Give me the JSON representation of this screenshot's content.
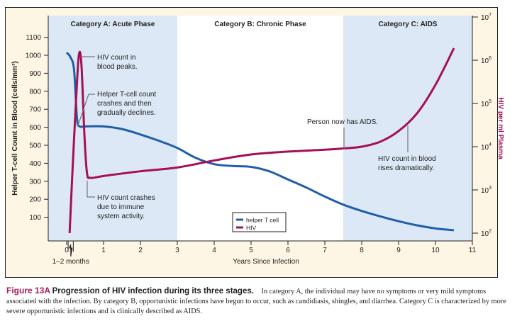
{
  "chart_data": {
    "type": "line",
    "xlabel": "Years Since Infection",
    "ylabel": "Helper T-cell Count in Blood (cells/mm³)",
    "y2label": "HIV per ml Plasma",
    "xlim": [
      -0.5,
      11
    ],
    "ylim": [
      0,
      1100
    ],
    "y2lim": [
      100,
      10000000
    ],
    "y2scale": "log",
    "xticks": [
      "0",
      "1",
      "2",
      "3",
      "4",
      "5",
      "6",
      "7",
      "8",
      "9",
      "10",
      "11"
    ],
    "yticks": [
      "100",
      "200",
      "300",
      "400",
      "500",
      "600",
      "700",
      "800",
      "900",
      "1000",
      "1100"
    ],
    "y2ticks": [
      "10",
      "10",
      "10",
      "10",
      "10",
      "10"
    ],
    "y2tick_exponents": [
      "2",
      "3",
      "4",
      "5",
      "6",
      "7"
    ],
    "regions": [
      {
        "label": "Category A:  Acute Phase",
        "from": -0.5,
        "to": 3,
        "color": "#dce8f5"
      },
      {
        "label": "Category B: Chronic Phase",
        "from": 3,
        "to": 7.5,
        "color": "#ffffff"
      },
      {
        "label": "Category C: AIDS",
        "from": 7.5,
        "to": 11,
        "color": "#dce8f5"
      }
    ],
    "series": [
      {
        "name": "helper T cell",
        "axis": "left",
        "color": "#1f5fa8",
        "x": [
          0,
          0.1,
          0.2,
          0.28,
          0.35,
          0.5,
          1,
          1.5,
          2,
          2.5,
          3,
          3.5,
          4,
          4.5,
          5,
          5.5,
          6,
          6.5,
          7,
          7.5,
          8,
          8.5,
          9,
          9.5,
          10,
          10.5
        ],
        "y": [
          1015,
          990,
          920,
          650,
          605,
          605,
          605,
          590,
          560,
          525,
          485,
          430,
          395,
          385,
          380,
          355,
          310,
          265,
          215,
          170,
          135,
          105,
          78,
          55,
          38,
          28
        ]
      },
      {
        "name": "HIV",
        "axis": "right",
        "color": "#a50f55",
        "x": [
          0.08,
          0.15,
          0.25,
          0.33,
          0.4,
          0.48,
          0.55,
          0.65,
          1,
          2,
          3,
          4,
          5,
          6,
          7,
          7.5,
          8,
          8.5,
          9,
          9.5,
          10,
          10.5
        ],
        "y": [
          100,
          2000,
          100000,
          1300000,
          800000,
          20000,
          2500,
          1900,
          2100,
          2700,
          3300,
          4800,
          6600,
          7700,
          8500,
          9100,
          10000,
          13000,
          23000,
          59000,
          270000,
          1900000
        ]
      }
    ],
    "annotations": {
      "hiv_peak": [
        "HIV count in",
        "blood peaks."
      ],
      "tcell_crash": [
        "Helper T-cell count",
        "crashes and then",
        "gradually declines."
      ],
      "hiv_crash": [
        "HIV count crashes",
        "due to immune",
        "system activity."
      ],
      "aids": "Person now has AIDS.",
      "hiv_rise": [
        "HIV count in blood",
        "rises dramatically."
      ],
      "months": "1–2 months"
    },
    "legend_position": "bottom-center"
  },
  "caption": {
    "figure": "Figure 13A",
    "title": "Progression of HIV infection during its three stages.",
    "body": "In category A, the individual may have no symptoms or very mild symptoms associated with the infection. By category B, opportunistic infections have begun to occur, such as candidiasis, shingles, and diarrhea. Category C is characterized by more severe opportunistic infections and is clinically described as AIDS."
  }
}
